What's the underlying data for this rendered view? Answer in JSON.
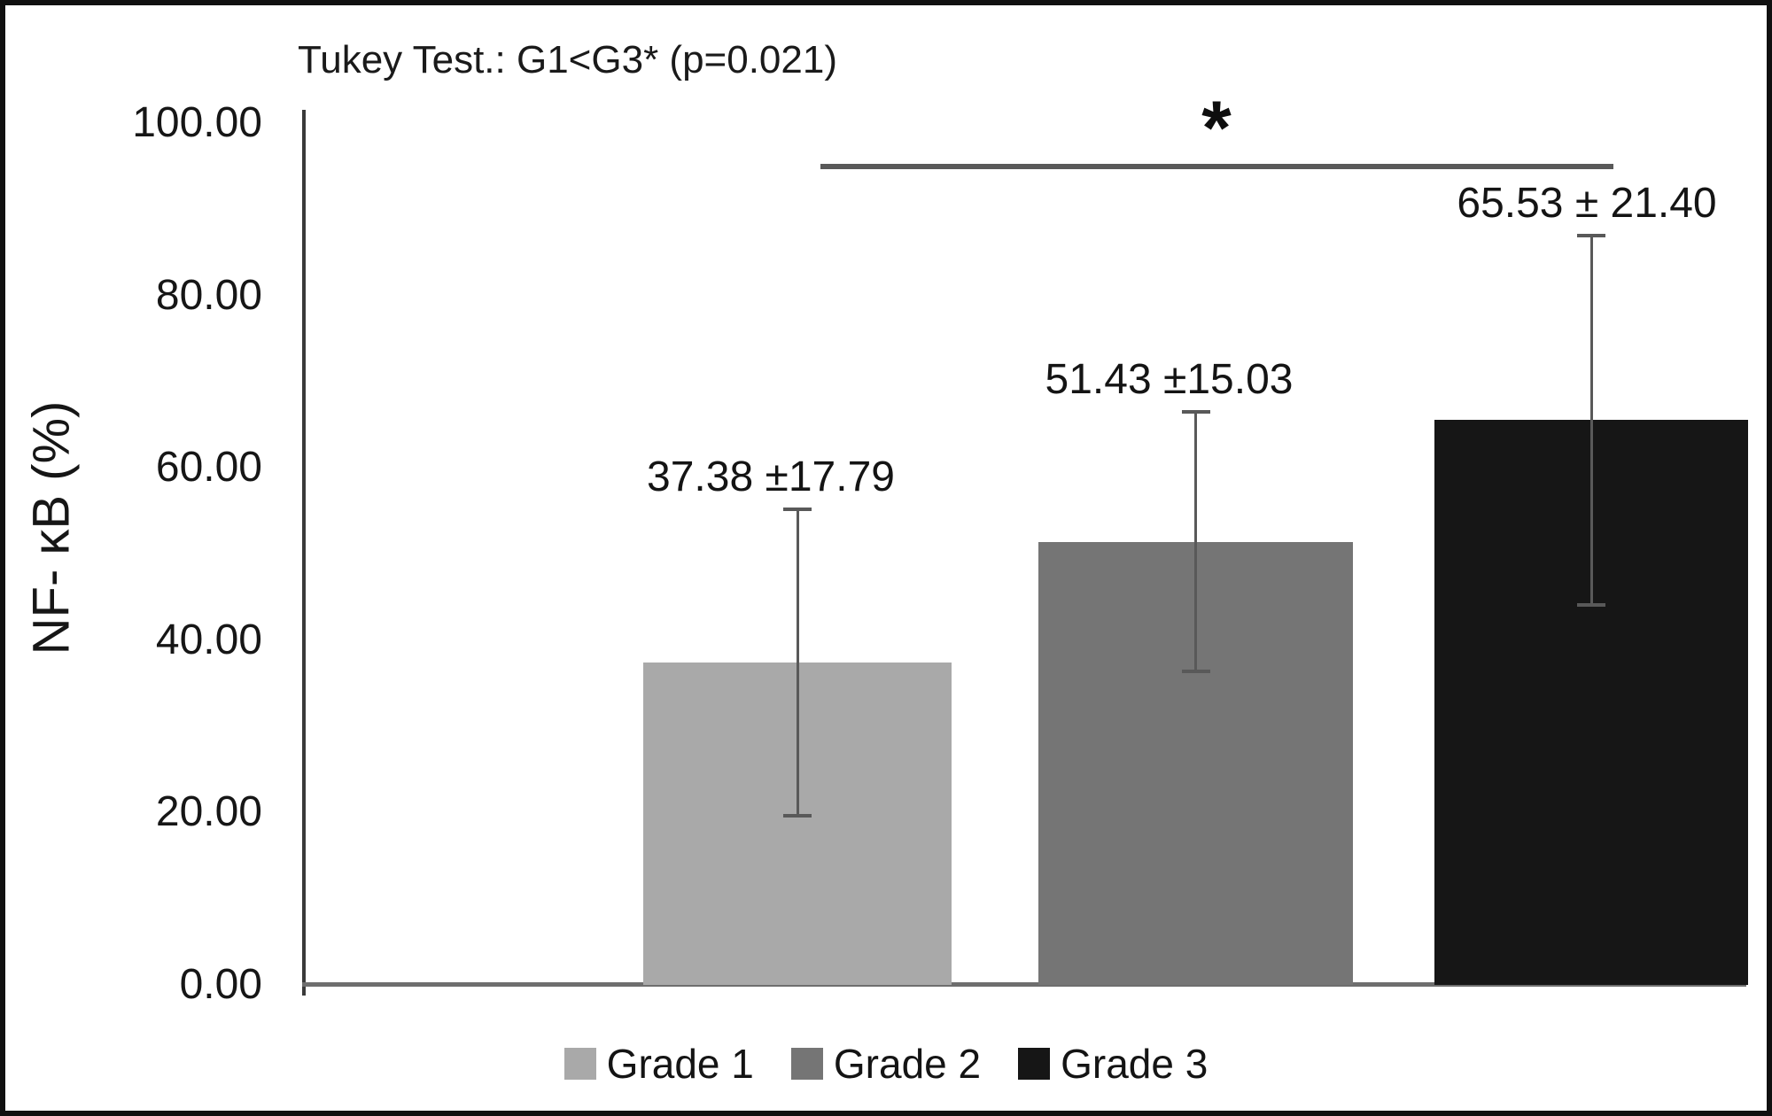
{
  "chart_data": {
    "type": "bar",
    "title": "Tukey Test.: G1<G3* (p=0.021)",
    "ylabel": "NF- κB (%)",
    "xlabel": "",
    "ylim": [
      0,
      100
    ],
    "ytick_values": [
      0,
      20,
      40,
      60,
      80,
      100
    ],
    "ytick_labels": [
      "0.00",
      "20.00",
      "40.00",
      "60.00",
      "80.00",
      "100.00"
    ],
    "categories": [
      "Grade 1",
      "Grade 2",
      "Grade 3"
    ],
    "values": [
      37.38,
      51.43,
      65.53
    ],
    "errors": [
      17.79,
      15.03,
      21.4
    ],
    "bar_value_labels": [
      "37.38 ±17.79",
      "51.43 ±15.03",
      "65.53 ± 21.40"
    ],
    "bar_colors": [
      "#a9a9a9",
      "#757575",
      "#161616"
    ],
    "grid": false,
    "legend": {
      "position": "bottom",
      "entries": [
        {
          "label": "Grade 1",
          "color": "#a9a9a9"
        },
        {
          "label": "Grade 2",
          "color": "#757575"
        },
        {
          "label": "Grade 3",
          "color": "#161616"
        }
      ]
    },
    "significance": {
      "marker": "*",
      "between": [
        "Grade 1",
        "Grade 3"
      ],
      "p_value": 0.021
    }
  },
  "colors": {
    "error_bar": "#595959",
    "significance_line": "#595959",
    "y_axis_line": "#3a3a3a",
    "x_axis_line": "#6e6e6e",
    "text": "#1a1a1a",
    "frame_border": "#101010",
    "background": "#ffffff"
  }
}
